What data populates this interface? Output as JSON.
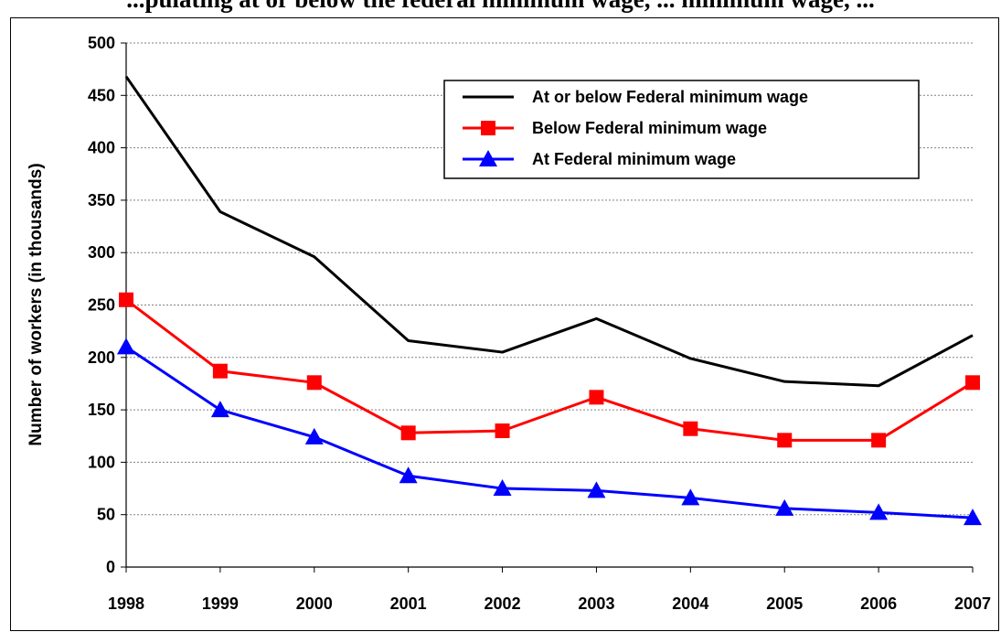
{
  "chart_data": {
    "type": "line",
    "title": "...pulating at or below the federal minimum wage, ... minimum wage, ...",
    "ylabel": "Number of workers (in thousands)",
    "xlabel": "",
    "categories": [
      "1998",
      "1999",
      "2000",
      "2001",
      "2002",
      "2003",
      "2004",
      "2005",
      "2006",
      "2007"
    ],
    "ylim": [
      0,
      500
    ],
    "yticks": [
      0,
      50,
      100,
      150,
      200,
      250,
      300,
      350,
      400,
      450,
      500
    ],
    "grid": "horizontal",
    "legend_position": "top-right",
    "series": [
      {
        "name": "At or below Federal minimum wage",
        "color": "#000000",
        "marker": "none",
        "values": [
          468,
          339,
          296,
          216,
          205,
          237,
          199,
          177,
          173,
          221
        ]
      },
      {
        "name": "Below Federal minimum wage",
        "color": "#ff0000",
        "marker": "square",
        "values": [
          255,
          187,
          176,
          128,
          130,
          162,
          132,
          121,
          121,
          176
        ]
      },
      {
        "name": "At Federal minimum wage",
        "color": "#0000ff",
        "marker": "triangle",
        "values": [
          210,
          150,
          124,
          87,
          75,
          73,
          66,
          56,
          52,
          47
        ]
      }
    ]
  }
}
